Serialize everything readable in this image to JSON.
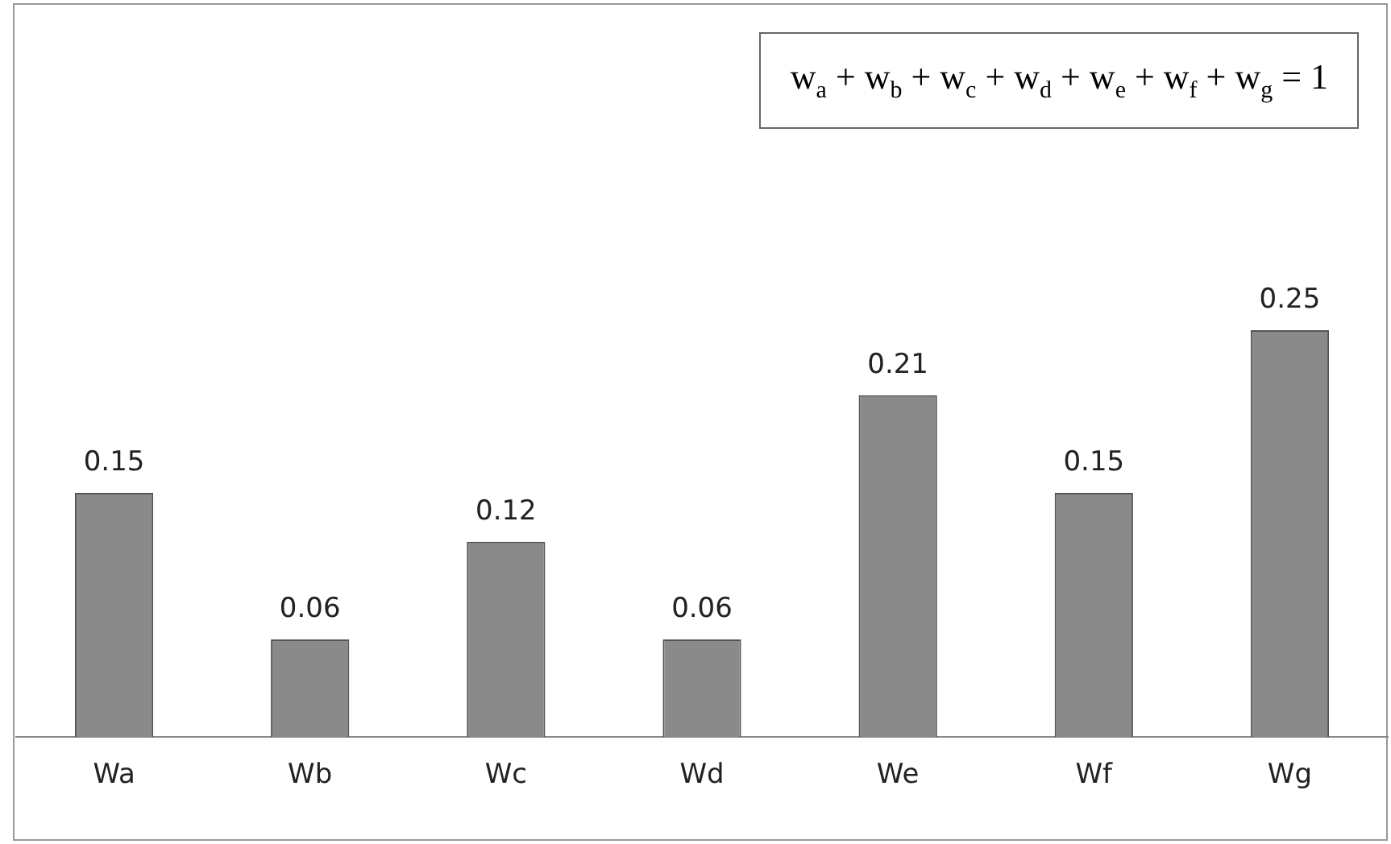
{
  "chart_data": {
    "type": "bar",
    "categories": [
      "Wa",
      "Wb",
      "Wc",
      "Wd",
      "We",
      "Wf",
      "Wg"
    ],
    "values": [
      0.15,
      0.06,
      0.12,
      0.06,
      0.21,
      0.15,
      0.25
    ],
    "color": "#8a8a8a",
    "data_labels": true,
    "grid": false,
    "legend": false,
    "annotations": [
      "w$_{a}$ + w$_{b}$ + w$_{c}$ + w$_{d}$ + w$_{e}$ + w$_{f}$ + w$_{g}$ = 1"
    ]
  }
}
